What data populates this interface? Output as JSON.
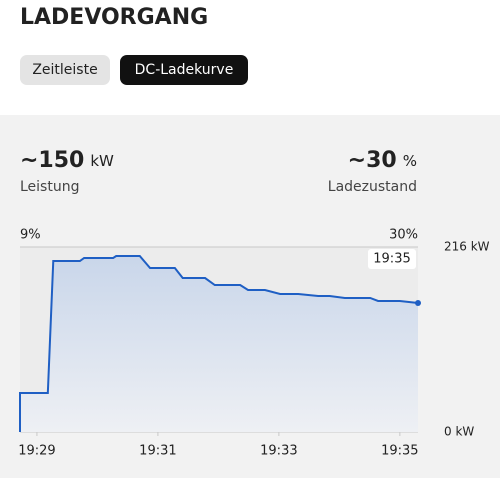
{
  "header": {
    "title": "LADEVORGANG"
  },
  "tabs": [
    "Zeitleiste",
    "DC-Ladekurve"
  ],
  "stats": [
    {
      "value": "~150",
      "unit": "kW",
      "label": "Leistung"
    },
    {
      "value": "~30",
      "unit": "%",
      "label": "Ladezustand"
    }
  ],
  "chart_data": {
    "type": "line",
    "soc_start_label": "9%",
    "soc_end_label": "30%",
    "cursor_label": "19:35",
    "x": [
      1168.72,
      1168.72,
      1169.18,
      1169.27,
      1169.71,
      1169.78,
      1170.26,
      1170.31,
      1170.7,
      1170.87,
      1171.28,
      1171.41,
      1171.78,
      1171.94,
      1172.36,
      1172.49,
      1172.77,
      1173.02,
      1173.32,
      1173.65,
      1173.84,
      1174.09,
      1174.51,
      1174.64,
      1175.0,
      1175.3
    ],
    "values": [
      0,
      45.5,
      45.5,
      199.6,
      199.6,
      203.2,
      203.2,
      205.5,
      205.5,
      191.5,
      191.5,
      179.8,
      179.8,
      171.6,
      171.6,
      165.8,
      165.8,
      161.1,
      161.1,
      158.8,
      158.8,
      156.5,
      156.5,
      153.0,
      153.0,
      150.6
    ],
    "color": "#1f5fc4",
    "xlim": [
      1168.72,
      1175.3
    ],
    "xticks": [
      {
        "value": 1169,
        "label": "19:29"
      },
      {
        "value": 1171,
        "label": "19:31"
      },
      {
        "value": 1173,
        "label": "19:33"
      },
      {
        "value": 1175,
        "label": "19:35"
      }
    ],
    "ylim": [
      0,
      216
    ],
    "yticks": [
      {
        "value": 216,
        "label": "216 kW"
      },
      {
        "value": 0,
        "label": "0 kW"
      }
    ]
  }
}
